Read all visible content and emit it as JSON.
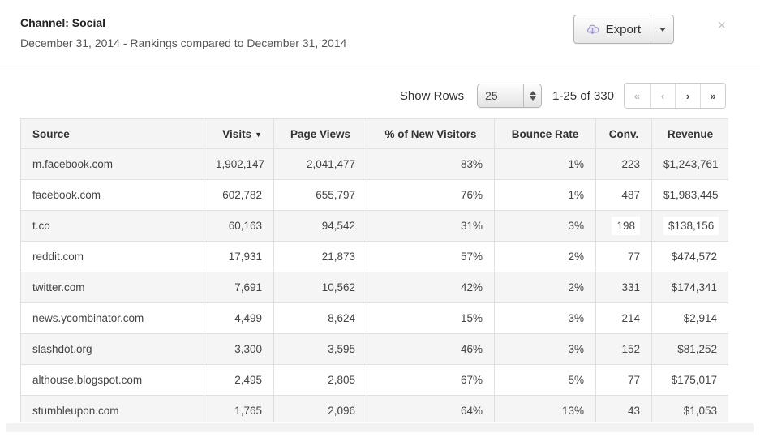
{
  "header": {
    "title": "Channel: Social",
    "subtitle": "December 31, 2014 - Rankings compared to December 31, 2014",
    "export_label": "Export",
    "close_glyph": "×"
  },
  "toolbar": {
    "show_rows_label": "Show Rows",
    "rows_per_page": "25",
    "range_text": "1-25 of 330",
    "pagination": [
      {
        "name": "first-page-button",
        "glyph": "«",
        "enabled": false
      },
      {
        "name": "prev-page-button",
        "glyph": "‹",
        "enabled": false
      },
      {
        "name": "next-page-button",
        "glyph": "›",
        "enabled": true
      },
      {
        "name": "last-page-button",
        "glyph": "»",
        "enabled": true
      }
    ]
  },
  "table": {
    "sort_indicator": "▼",
    "columns": [
      {
        "label": "Source",
        "align": "left"
      },
      {
        "label": "Visits",
        "align": "right",
        "sorted": "desc"
      },
      {
        "label": "Page Views",
        "align": "center"
      },
      {
        "label": "% of New Visitors",
        "align": "center"
      },
      {
        "label": "Bounce Rate",
        "align": "center"
      },
      {
        "label": "Conv.",
        "align": "center"
      },
      {
        "label": "Revenue",
        "align": "center"
      }
    ],
    "rows": [
      {
        "cells": [
          "m.facebook.com",
          "1,902,147",
          "2,041,477",
          "83%",
          "1%",
          "223",
          "$1,243,761"
        ]
      },
      {
        "cells": [
          "facebook.com",
          "602,782",
          "655,797",
          "76%",
          "1%",
          "487",
          "$1,983,445"
        ]
      },
      {
        "cells": [
          "t.co",
          "60,163",
          "94,542",
          "31%",
          "3%",
          "198",
          "$138,156"
        ],
        "updated_cells": [
          5,
          6
        ]
      },
      {
        "cells": [
          "reddit.com",
          "17,931",
          "21,873",
          "57%",
          "2%",
          "77",
          "$474,572"
        ]
      },
      {
        "cells": [
          "twitter.com",
          "7,691",
          "10,562",
          "42%",
          "2%",
          "331",
          "$174,341"
        ]
      },
      {
        "cells": [
          "news.ycombinator.com",
          "4,499",
          "8,624",
          "15%",
          "3%",
          "214",
          "$2,914"
        ]
      },
      {
        "cells": [
          "slashdot.org",
          "3,300",
          "3,595",
          "46%",
          "3%",
          "152",
          "$81,252"
        ]
      },
      {
        "cells": [
          "althouse.blogspot.com",
          "2,495",
          "2,805",
          "67%",
          "5%",
          "77",
          "$175,017"
        ]
      },
      {
        "cells": [
          "stumbleupon.com",
          "1,765",
          "2,096",
          "64%",
          "13%",
          "43",
          "$1,053"
        ]
      }
    ],
    "partial_next_row": true
  },
  "colors": {
    "stripe": "#f5f5f5",
    "header_bg": "#f4f4f4",
    "table_border": "#e0e0e0",
    "export_icon_accent": "#9a93c8"
  }
}
